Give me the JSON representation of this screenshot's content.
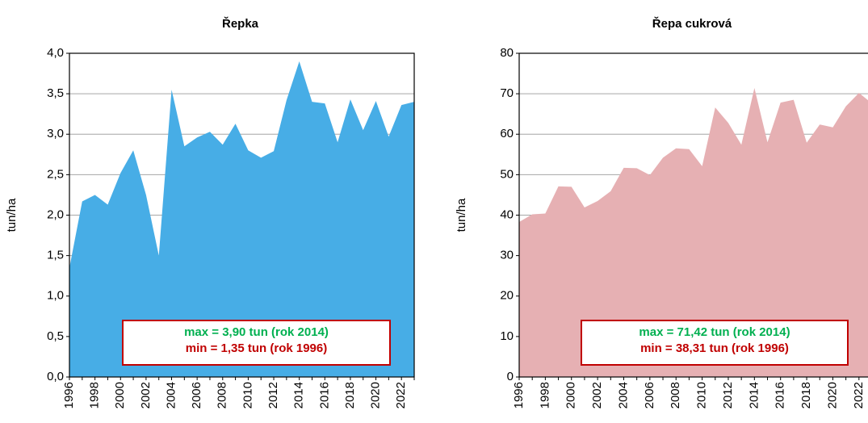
{
  "chart_data": [
    {
      "type": "area",
      "title": "Řepka",
      "y_label": "tun/ha",
      "color": "#47ade6",
      "grid": true,
      "categories": [
        "1996",
        null,
        "1998",
        null,
        "2000",
        null,
        "2002",
        null,
        "2004",
        null,
        "2006",
        null,
        "2008",
        null,
        "2010",
        null,
        "2012",
        null,
        "2014",
        null,
        "2016",
        null,
        "2018",
        null,
        "2020",
        null,
        "2022",
        null
      ],
      "values": [
        1.35,
        2.17,
        2.25,
        2.13,
        2.52,
        2.8,
        2.25,
        1.5,
        3.55,
        2.85,
        2.96,
        3.03,
        2.87,
        3.13,
        2.8,
        2.71,
        2.79,
        3.42,
        3.9,
        3.4,
        3.38,
        2.9,
        3.43,
        3.05,
        3.41,
        2.97,
        3.36,
        3.4
      ],
      "ylim": [
        0,
        4
      ],
      "yticks": [
        {
          "value": 0,
          "label": "0,0"
        },
        {
          "value": 0.5,
          "label": "0,5"
        },
        {
          "value": 1,
          "label": "1,0"
        },
        {
          "value": 1.5,
          "label": "1,5"
        },
        {
          "value": 2,
          "label": "2,0"
        },
        {
          "value": 2.5,
          "label": "2,5"
        },
        {
          "value": 3,
          "label": "3,0"
        },
        {
          "value": 3.5,
          "label": "3,5"
        },
        {
          "value": 4,
          "label": "4,0"
        }
      ],
      "annotations": [
        "max =  3,90 tun (rok 2014)",
        "min =  1,35 tun (rok 1996)"
      ]
    },
    {
      "type": "area",
      "title": "Řepa cukrová",
      "y_label": "tun/ha",
      "color": "#e6b0b3",
      "grid": true,
      "categories": [
        "1996",
        null,
        "1998",
        null,
        "2000",
        null,
        "2002",
        null,
        "2004",
        null,
        "2006",
        null,
        "2008",
        null,
        "2010",
        null,
        "2012",
        null,
        "2014",
        null,
        "2016",
        null,
        "2018",
        null,
        "2020",
        null,
        "2022",
        null
      ],
      "values": [
        38.31,
        40.2,
        40.4,
        47.1,
        47.0,
        41.9,
        43.5,
        45.9,
        51.7,
        51.6,
        49.9,
        54.2,
        56.5,
        56.3,
        52.1,
        66.6,
        62.8,
        57.4,
        71.42,
        58.0,
        67.8,
        68.5,
        57.9,
        62.4,
        61.7,
        66.9,
        70.2,
        67.6
      ],
      "ylim": [
        0,
        80
      ],
      "yticks": [
        0,
        10,
        20,
        30,
        40,
        50,
        60,
        70,
        80
      ],
      "annotations": [
        "max =  71,42 tun (rok 2014)",
        "min =  38,31 tun (rok 1996)"
      ]
    }
  ]
}
